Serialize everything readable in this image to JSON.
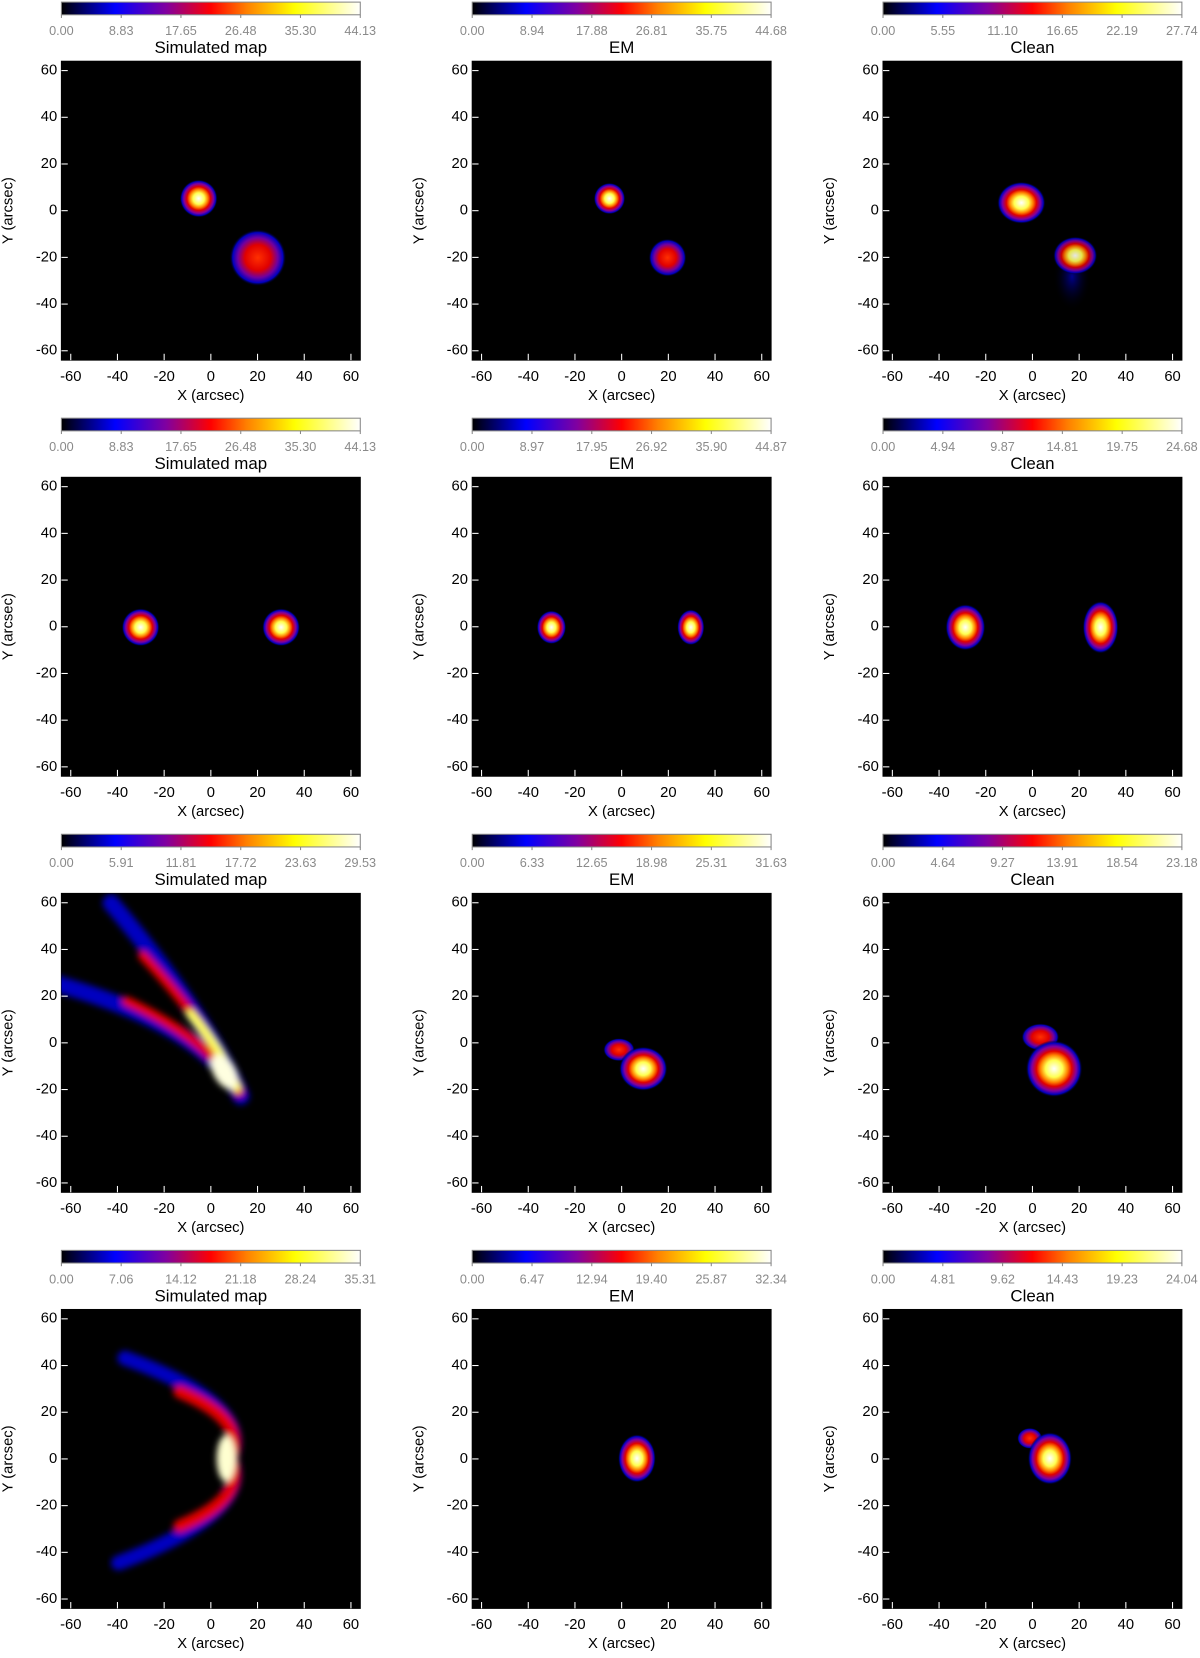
{
  "chart_data": [
    {
      "type": "heatmap",
      "title": "Simulated map",
      "xlabel": "X (arcsec)",
      "ylabel": "Y (arcsec)",
      "xlim": [
        -64,
        64
      ],
      "ylim": [
        -64,
        64
      ],
      "xticks": [
        -60,
        -40,
        -20,
        0,
        20,
        40,
        60
      ],
      "yticks": [
        -60,
        -40,
        -20,
        0,
        20,
        40,
        60
      ],
      "colorbar": {
        "lim": [
          0,
          44.13
        ],
        "ticks": [
          {
            "value": 0,
            "label": "0.00"
          },
          8.83,
          17.65,
          26.48,
          {
            "value": 35.3,
            "label": "35.30"
          },
          44.13
        ]
      }
    },
    {
      "type": "heatmap",
      "title": "EM",
      "xlabel": "X (arcsec)",
      "ylabel": "Y (arcsec)",
      "xlim": [
        -64,
        64
      ],
      "ylim": [
        -64,
        64
      ],
      "xticks": [
        -60,
        -40,
        -20,
        0,
        20,
        40,
        60
      ],
      "yticks": [
        -60,
        -40,
        -20,
        0,
        20,
        40,
        60
      ],
      "colorbar": {
        "lim": [
          0,
          44.68
        ],
        "ticks": [
          {
            "value": 0,
            "label": "0.00"
          },
          8.94,
          17.88,
          26.81,
          35.75,
          44.68
        ]
      }
    },
    {
      "type": "heatmap",
      "title": "Clean",
      "xlabel": "X (arcsec)",
      "ylabel": "Y (arcsec)",
      "xlim": [
        -64,
        64
      ],
      "ylim": [
        -64,
        64
      ],
      "xticks": [
        -60,
        -40,
        -20,
        0,
        20,
        40,
        60
      ],
      "yticks": [
        -60,
        -40,
        -20,
        0,
        20,
        40,
        60
      ],
      "colorbar": {
        "lim": [
          0,
          27.74
        ],
        "ticks": [
          {
            "value": 0,
            "label": "0.00"
          },
          5.55,
          {
            "value": 11.1,
            "label": "11.10"
          },
          16.65,
          22.19,
          27.74
        ]
      }
    },
    {
      "type": "heatmap",
      "title": "Simulated map",
      "xlabel": "X (arcsec)",
      "ylabel": "Y (arcsec)",
      "xlim": [
        -64,
        64
      ],
      "ylim": [
        -64,
        64
      ],
      "xticks": [
        -60,
        -40,
        -20,
        0,
        20,
        40,
        60
      ],
      "yticks": [
        -60,
        -40,
        -20,
        0,
        20,
        40,
        60
      ],
      "colorbar": {
        "lim": [
          0,
          44.13
        ],
        "ticks": [
          {
            "value": 0,
            "label": "0.00"
          },
          8.83,
          17.65,
          26.48,
          {
            "value": 35.3,
            "label": "35.30"
          },
          44.13
        ]
      }
    },
    {
      "type": "heatmap",
      "title": "EM",
      "xlabel": "X (arcsec)",
      "ylabel": "Y (arcsec)",
      "xlim": [
        -64,
        64
      ],
      "ylim": [
        -64,
        64
      ],
      "xticks": [
        -60,
        -40,
        -20,
        0,
        20,
        40,
        60
      ],
      "yticks": [
        -60,
        -40,
        -20,
        0,
        20,
        40,
        60
      ],
      "colorbar": {
        "lim": [
          0,
          44.87
        ],
        "ticks": [
          {
            "value": 0,
            "label": "0.00"
          },
          8.97,
          17.95,
          26.92,
          {
            "value": 35.9,
            "label": "35.90"
          },
          44.87
        ]
      }
    },
    {
      "type": "heatmap",
      "title": "Clean",
      "xlabel": "X (arcsec)",
      "ylabel": "Y (arcsec)",
      "xlim": [
        -64,
        64
      ],
      "ylim": [
        -64,
        64
      ],
      "xticks": [
        -60,
        -40,
        -20,
        0,
        20,
        40,
        60
      ],
      "yticks": [
        -60,
        -40,
        -20,
        0,
        20,
        40,
        60
      ],
      "colorbar": {
        "lim": [
          0,
          24.68
        ],
        "ticks": [
          {
            "value": 0,
            "label": "0.00"
          },
          4.94,
          9.87,
          14.81,
          19.75,
          24.68
        ]
      }
    },
    {
      "type": "heatmap",
      "title": "Simulated map",
      "xlabel": "X (arcsec)",
      "ylabel": "Y (arcsec)",
      "xlim": [
        -64,
        64
      ],
      "ylim": [
        -64,
        64
      ],
      "xticks": [
        -60,
        -40,
        -20,
        0,
        20,
        40,
        60
      ],
      "yticks": [
        -60,
        -40,
        -20,
        0,
        20,
        40,
        60
      ],
      "colorbar": {
        "lim": [
          0,
          29.53
        ],
        "ticks": [
          {
            "value": 0,
            "label": "0.00"
          },
          5.91,
          11.81,
          17.72,
          23.63,
          29.53
        ]
      }
    },
    {
      "type": "heatmap",
      "title": "EM",
      "xlabel": "X (arcsec)",
      "ylabel": "Y (arcsec)",
      "xlim": [
        -64,
        64
      ],
      "ylim": [
        -64,
        64
      ],
      "xticks": [
        -60,
        -40,
        -20,
        0,
        20,
        40,
        60
      ],
      "yticks": [
        -60,
        -40,
        -20,
        0,
        20,
        40,
        60
      ],
      "colorbar": {
        "lim": [
          0,
          31.63
        ],
        "ticks": [
          {
            "value": 0,
            "label": "0.00"
          },
          6.33,
          12.65,
          18.98,
          25.31,
          31.63
        ]
      }
    },
    {
      "type": "heatmap",
      "title": "Clean",
      "xlabel": "X (arcsec)",
      "ylabel": "Y (arcsec)",
      "xlim": [
        -64,
        64
      ],
      "ylim": [
        -64,
        64
      ],
      "xticks": [
        -60,
        -40,
        -20,
        0,
        20,
        40,
        60
      ],
      "yticks": [
        -60,
        -40,
        -20,
        0,
        20,
        40,
        60
      ],
      "colorbar": {
        "lim": [
          0,
          23.18
        ],
        "ticks": [
          {
            "value": 0,
            "label": "0.00"
          },
          4.64,
          9.27,
          13.91,
          18.54,
          23.18
        ]
      }
    },
    {
      "type": "heatmap",
      "title": "Simulated map",
      "xlabel": "X (arcsec)",
      "ylabel": "Y (arcsec)",
      "xlim": [
        -64,
        64
      ],
      "ylim": [
        -64,
        64
      ],
      "xticks": [
        -60,
        -40,
        -20,
        0,
        20,
        40,
        60
      ],
      "yticks": [
        -60,
        -40,
        -20,
        0,
        20,
        40,
        60
      ],
      "colorbar": {
        "lim": [
          0,
          35.31
        ],
        "ticks": [
          {
            "value": 0,
            "label": "0.00"
          },
          7.06,
          14.12,
          21.18,
          28.24,
          35.31
        ]
      }
    },
    {
      "type": "heatmap",
      "title": "EM",
      "xlabel": "X (arcsec)",
      "ylabel": "Y (arcsec)",
      "xlim": [
        -64,
        64
      ],
      "ylim": [
        -64,
        64
      ],
      "xticks": [
        -60,
        -40,
        -20,
        0,
        20,
        40,
        60
      ],
      "yticks": [
        -60,
        -40,
        -20,
        0,
        20,
        40,
        60
      ],
      "colorbar": {
        "lim": [
          0,
          32.34
        ],
        "ticks": [
          {
            "value": 0,
            "label": "0.00"
          },
          6.47,
          12.94,
          {
            "value": 19.4,
            "label": "19.40"
          },
          25.87,
          32.34
        ]
      }
    },
    {
      "type": "heatmap",
      "title": "Clean",
      "xlabel": "X (arcsec)",
      "ylabel": "Y (arcsec)",
      "xlim": [
        -64,
        64
      ],
      "ylim": [
        -64,
        64
      ],
      "xticks": [
        -60,
        -40,
        -20,
        0,
        20,
        40,
        60
      ],
      "yticks": [
        -60,
        -40,
        -20,
        0,
        20,
        40,
        60
      ],
      "colorbar": {
        "lim": [
          0,
          24.04
        ],
        "ticks": [
          {
            "value": 0,
            "label": "0.00"
          },
          4.81,
          9.62,
          14.43,
          19.23,
          24.04
        ]
      }
    }
  ]
}
